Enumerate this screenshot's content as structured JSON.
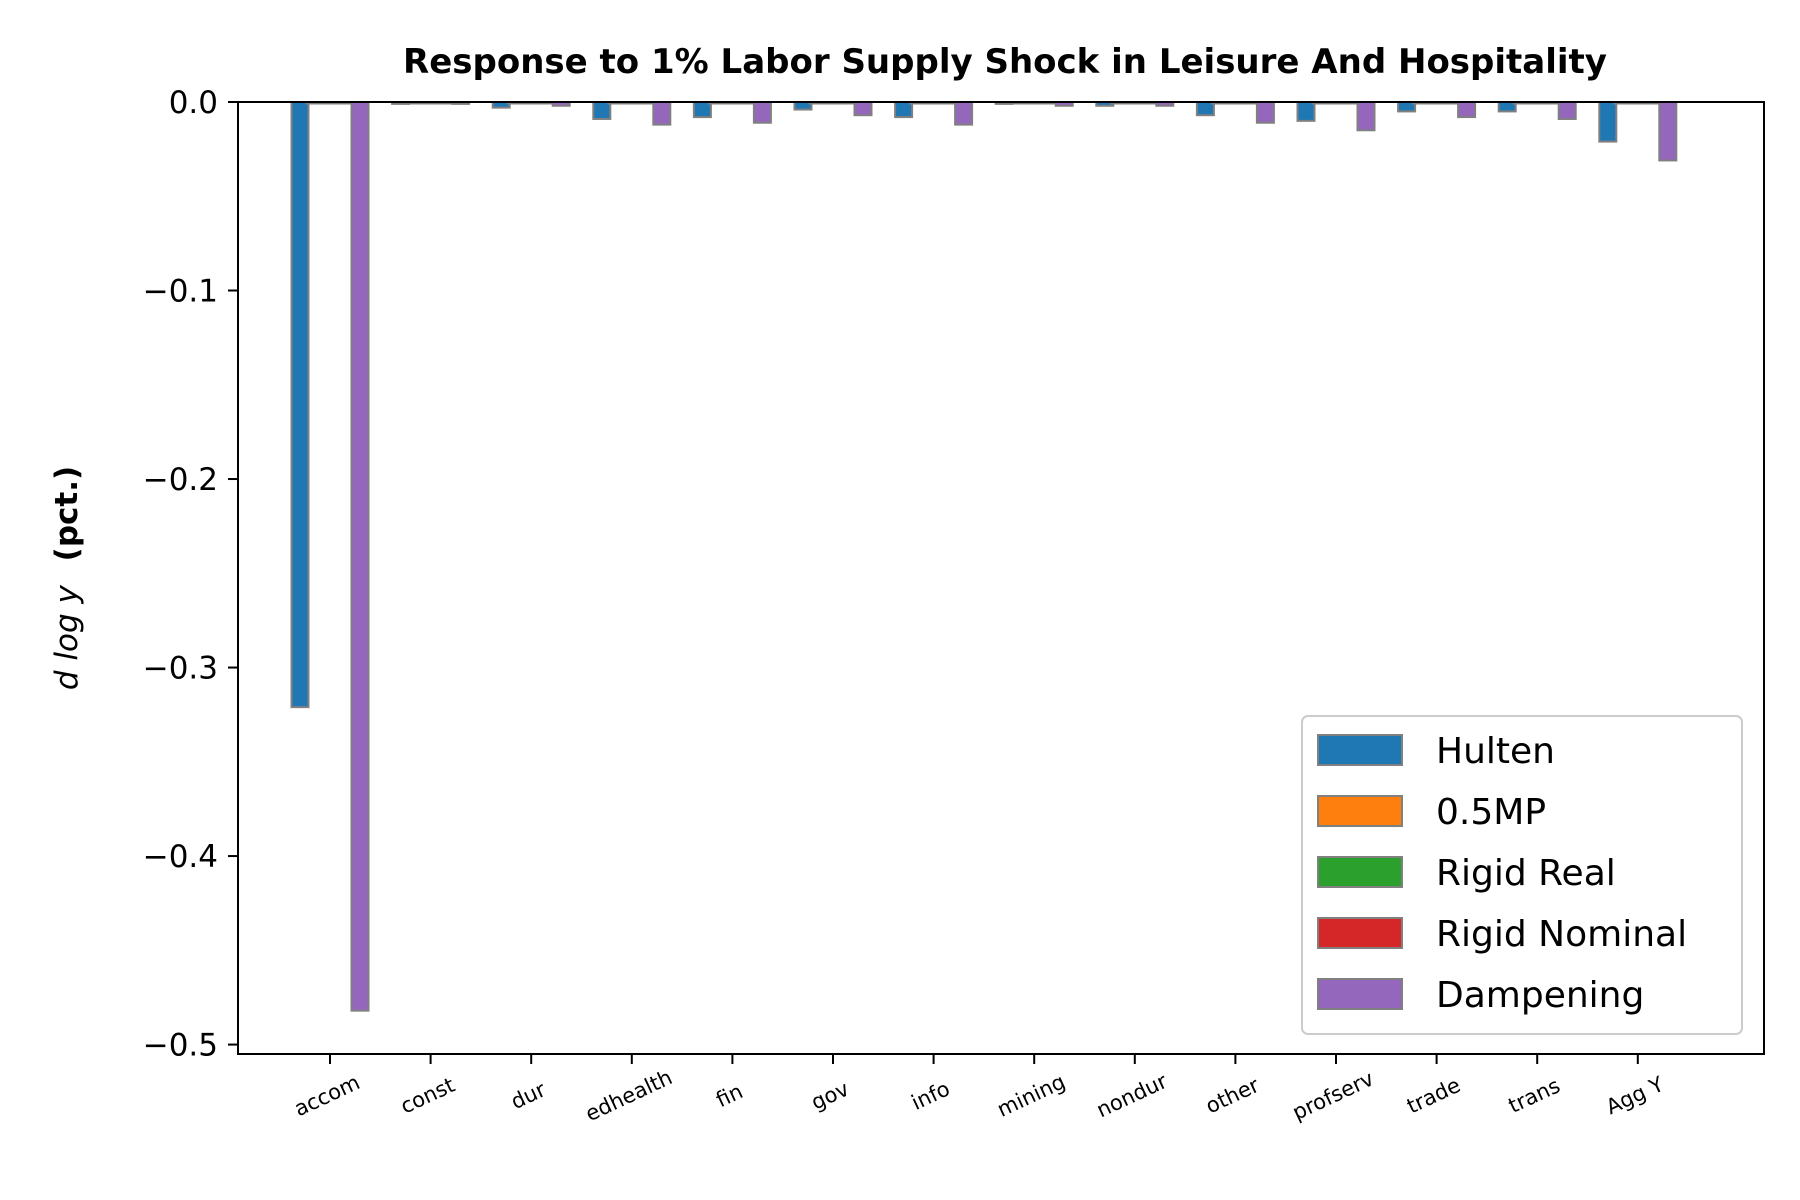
{
  "chart_data": {
    "type": "bar",
    "title": "Response to 1% Labor Supply Shock in Leisure And Hospitality",
    "ylabel_symbol": "d log y",
    "ylabel_unit": "(pct.)",
    "xlabel": "",
    "ylim": [
      -0.505,
      0.0
    ],
    "yticks": [
      0.0,
      -0.1,
      -0.2,
      -0.3,
      -0.4,
      -0.5
    ],
    "ytick_labels": [
      "0.0",
      "−0.1",
      "−0.2",
      "−0.3",
      "−0.4",
      "−0.5"
    ],
    "categories": [
      "accom",
      "const",
      "dur",
      "edhealth",
      "fin",
      "gov",
      "info",
      "mining",
      "nondur",
      "other",
      "profserv",
      "trade",
      "trans",
      "Agg Y"
    ],
    "legend_position": "lower-right",
    "bar_edge_color": "#808080",
    "series": [
      {
        "name": "Hulten",
        "color": "#1f77b4",
        "values": [
          -0.321,
          -0.001,
          -0.003,
          -0.009,
          -0.008,
          -0.004,
          -0.008,
          -0.001,
          -0.002,
          -0.007,
          -0.01,
          -0.005,
          -0.005,
          -0.021
        ]
      },
      {
        "name": "0.5MP",
        "color": "#ff7f0e",
        "values": [
          0,
          0,
          0,
          0,
          0,
          0,
          0,
          0,
          0,
          0,
          0,
          0,
          0,
          0
        ]
      },
      {
        "name": "Rigid Real",
        "color": "#2ca02c",
        "values": [
          0,
          0,
          0,
          0,
          0,
          0,
          0,
          0,
          0,
          0,
          0,
          0,
          0,
          0
        ]
      },
      {
        "name": "Rigid Nominal",
        "color": "#d62728",
        "values": [
          0,
          0,
          0,
          0,
          0,
          0,
          0,
          0,
          0,
          0,
          0,
          0,
          0,
          0
        ]
      },
      {
        "name": "Dampening",
        "color": "#9467bd",
        "values": [
          -0.482,
          -0.001,
          -0.002,
          -0.012,
          -0.011,
          -0.007,
          -0.012,
          -0.002,
          -0.002,
          -0.011,
          -0.015,
          -0.008,
          -0.009,
          -0.031
        ]
      }
    ]
  }
}
